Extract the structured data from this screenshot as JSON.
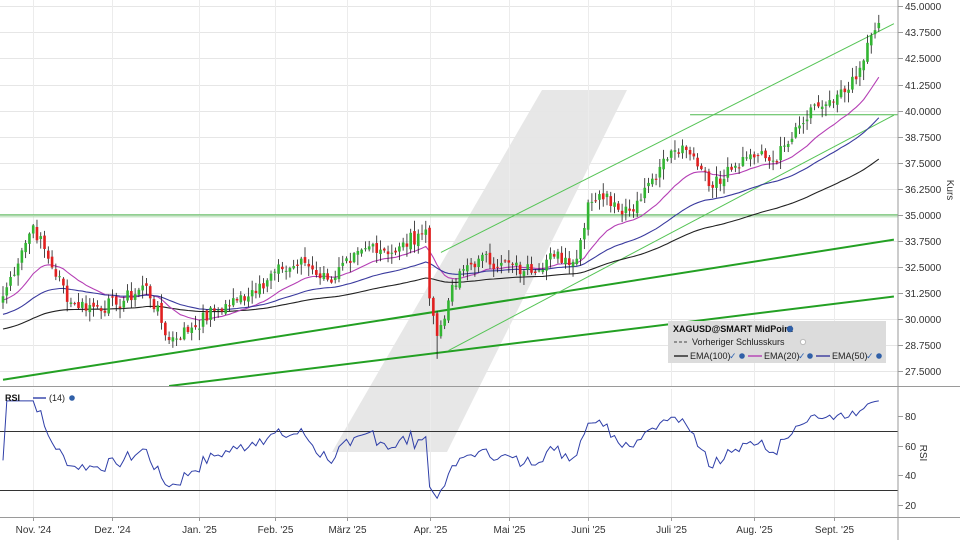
{
  "chart_data": [
    {
      "type": "candlestick",
      "title": "XAGUSD@SMART MidPoint",
      "ylabel": "Kurs",
      "ylim": [
        26.8,
        45.3
      ],
      "yticks": [
        "45.0000",
        "43.7500",
        "42.5000",
        "41.2500",
        "40.0000",
        "38.7500",
        "37.5000",
        "36.2500",
        "35.0000",
        "33.7500",
        "32.5000",
        "31.2500",
        "30.0000",
        "28.7500",
        "27.5000"
      ],
      "ytick_values": [
        45.0,
        43.75,
        42.5,
        41.25,
        40.0,
        38.75,
        37.5,
        36.25,
        35.0,
        33.75,
        32.5,
        31.25,
        30.0,
        28.75,
        27.5
      ],
      "x_months": [
        "Nov. '24",
        "Dez. '24",
        "Jan. '25",
        "Feb. '25",
        "März '25",
        "Apr. '25",
        "Mai '25",
        "Juni '25",
        "Juli '25",
        "Aug. '25",
        "Sept. '25"
      ],
      "month_index": [
        8,
        29,
        52,
        72,
        91,
        113,
        134,
        155,
        177,
        199,
        220
      ],
      "close_keypoints": [
        [
          0,
          31.1
        ],
        [
          5,
          33.3
        ],
        [
          8,
          34.5
        ],
        [
          12,
          32.9
        ],
        [
          18,
          30.8
        ],
        [
          24,
          30.6
        ],
        [
          30,
          30.7
        ],
        [
          38,
          31.6
        ],
        [
          44,
          29.0
        ],
        [
          50,
          29.6
        ],
        [
          56,
          30.4
        ],
        [
          62,
          30.9
        ],
        [
          68,
          31.7
        ],
        [
          74,
          32.4
        ],
        [
          80,
          32.7
        ],
        [
          86,
          31.9
        ],
        [
          92,
          32.7
        ],
        [
          98,
          33.6
        ],
        [
          104,
          33.2
        ],
        [
          110,
          34.1
        ],
        [
          112,
          34.3
        ],
        [
          113,
          31.0
        ],
        [
          115,
          29.2
        ],
        [
          118,
          30.9
        ],
        [
          122,
          32.4
        ],
        [
          126,
          32.9
        ],
        [
          132,
          32.7
        ],
        [
          138,
          32.3
        ],
        [
          146,
          33.0
        ],
        [
          152,
          32.9
        ],
        [
          155,
          35.6
        ],
        [
          158,
          36.0
        ],
        [
          162,
          35.6
        ],
        [
          166,
          35.2
        ],
        [
          170,
          36.3
        ],
        [
          174,
          37.3
        ],
        [
          178,
          38.1
        ],
        [
          182,
          37.9
        ],
        [
          186,
          37.1
        ],
        [
          188,
          36.3
        ],
        [
          192,
          37.3
        ],
        [
          198,
          37.9
        ],
        [
          204,
          37.6
        ],
        [
          208,
          38.4
        ],
        [
          212,
          39.4
        ],
        [
          216,
          40.2
        ],
        [
          220,
          40.4
        ],
        [
          224,
          41.0
        ],
        [
          226,
          41.5
        ],
        [
          228,
          42.4
        ],
        [
          230,
          43.6
        ],
        [
          232,
          44.2
        ]
      ],
      "series": [
        {
          "name": "EMA(100)",
          "color": "#222222"
        },
        {
          "name": "EMA(20)",
          "color": "#b53fb5"
        },
        {
          "name": "EMA(50)",
          "color": "#3a3a9e"
        }
      ],
      "legend": {
        "placement": "bottom-right",
        "entries": [
          "Vorheriger Schlusskurs",
          "EMA(100)",
          "EMA(20)",
          "EMA(50)"
        ]
      },
      "reference_lines": {
        "horizontal": [
          35.0,
          39.8
        ]
      },
      "trend_lines": [
        {
          "from": [
            0,
            27.1
          ],
          "to": [
            232,
            33.7
          ]
        },
        {
          "from": [
            44,
            26.8
          ],
          "to": [
            232,
            31.0
          ]
        },
        {
          "from": [
            116,
            33.2
          ],
          "to": [
            232,
            43.8
          ]
        },
        {
          "from": [
            118,
            28.5
          ],
          "to": [
            232,
            39.4
          ]
        }
      ],
      "colors": {
        "up": "#33b533",
        "down": "#e02020",
        "trend": "#2fa82f"
      }
    },
    {
      "type": "line",
      "title": "RSI",
      "series": [
        {
          "name": "(14)",
          "color": "#2f3fa8"
        }
      ],
      "ylim": [
        12,
        98
      ],
      "yticks": [
        "80",
        "60",
        "40",
        "20"
      ],
      "ytick_values": [
        80,
        60,
        40,
        20
      ],
      "reference_lines": [
        70,
        30
      ]
    }
  ]
}
